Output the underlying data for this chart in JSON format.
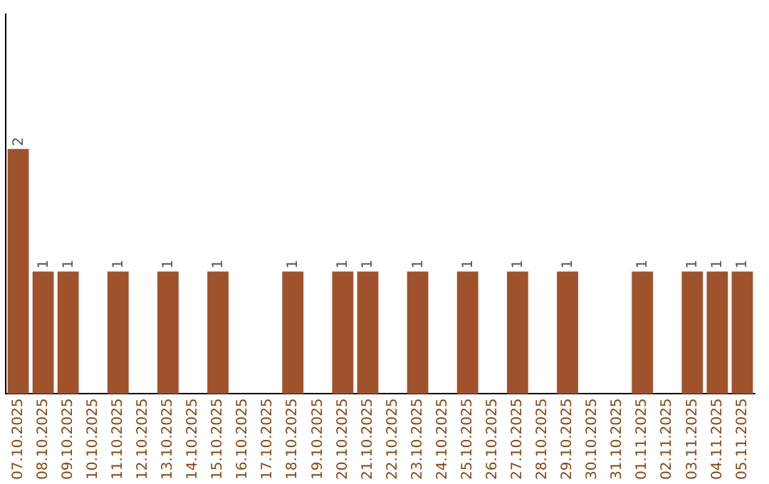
{
  "chart_data": {
    "type": "bar",
    "relative": false,
    "categories": [
      "07.10.2025",
      "08.10.2025",
      "09.10.2025",
      "10.10.2025",
      "11.10.2025",
      "12.10.2025",
      "13.10.2025",
      "14.10.2025",
      "15.10.2025",
      "16.10.2025",
      "17.10.2025",
      "18.10.2025",
      "19.10.2025",
      "20.10.2025",
      "21.10.2025",
      "22.10.2025",
      "23.10.2025",
      "24.10.2025",
      "25.10.2025",
      "26.10.2025",
      "27.10.2025",
      "28.10.2025",
      "29.10.2025",
      "30.10.2025",
      "31.10.2025",
      "01.11.2025",
      "02.11.2025",
      "03.11.2025",
      "04.11.2025",
      "05.11.2025"
    ],
    "values": [
      2,
      1,
      1,
      0,
      1,
      0,
      1,
      0,
      1,
      0,
      0,
      1,
      0,
      1,
      1,
      0,
      1,
      0,
      1,
      0,
      1,
      0,
      1,
      0,
      0,
      1,
      0,
      1,
      1,
      1
    ],
    "value_labels": [
      "2",
      "1",
      "1",
      null,
      "1",
      null,
      "1",
      null,
      "1",
      null,
      null,
      "1",
      null,
      "1",
      "1",
      null,
      "1",
      null,
      "1",
      null,
      "1",
      null,
      "1",
      null,
      null,
      "1",
      null,
      "1",
      "1",
      "1"
    ],
    "color": "#a0522d",
    "ylim": [
      0,
      3.1
    ],
    "tick_labels": "x",
    "grid": false,
    "legend": false
  }
}
